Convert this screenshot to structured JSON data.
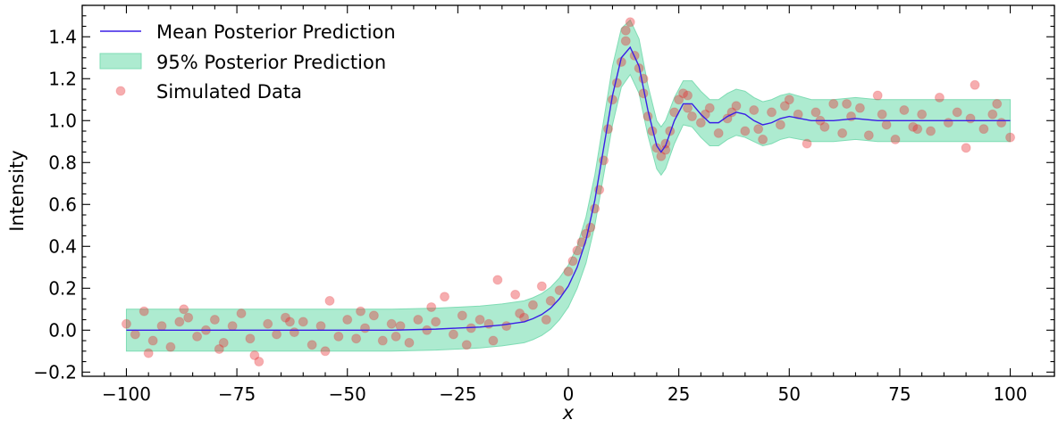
{
  "chart_data": {
    "type": "line",
    "xlabel": "x",
    "ylabel": "Intensity",
    "xlim": [
      -110,
      110
    ],
    "ylim": [
      -0.22,
      1.55
    ],
    "xticks": [
      -100,
      -75,
      -50,
      -25,
      0,
      25,
      50,
      75,
      100
    ],
    "xtick_labels": [
      "−100",
      "−75",
      "−50",
      "−25",
      "0",
      "25",
      "50",
      "75",
      "100"
    ],
    "yticks": [
      -0.2,
      0.0,
      0.2,
      0.4,
      0.6,
      0.8,
      1.0,
      1.2,
      1.4
    ],
    "ytick_labels": [
      "−0.2",
      "0.0",
      "0.2",
      "0.4",
      "0.6",
      "0.8",
      "1.0",
      "1.2",
      "1.4"
    ],
    "grid": false,
    "legend_position": "top-left",
    "colors": {
      "mean_line": "#3a1ee6",
      "band_fill": "#9fe8c8",
      "band_edge": "#7fdcb4",
      "scatter": "#e8282e"
    },
    "series": [
      {
        "name": "Mean Posterior Prediction",
        "kind": "line",
        "x": [
          -100,
          -90,
          -80,
          -70,
          -60,
          -50,
          -40,
          -30,
          -25,
          -20,
          -15,
          -10,
          -8,
          -6,
          -4,
          -2,
          0,
          2,
          4,
          6,
          8,
          10,
          12,
          14,
          16,
          18,
          20,
          21,
          22,
          24,
          26,
          28,
          30,
          32,
          34,
          36,
          38,
          40,
          42,
          44,
          46,
          48,
          50,
          55,
          60,
          65,
          70,
          75,
          80,
          85,
          90,
          95,
          100
        ],
        "y": [
          0.0,
          0.0,
          0.0,
          0.0,
          0.0,
          0.0,
          0.0,
          0.005,
          0.01,
          0.015,
          0.025,
          0.04,
          0.055,
          0.075,
          0.105,
          0.15,
          0.21,
          0.3,
          0.43,
          0.62,
          0.87,
          1.12,
          1.3,
          1.35,
          1.26,
          1.05,
          0.88,
          0.85,
          0.88,
          1.0,
          1.08,
          1.08,
          1.03,
          0.99,
          0.99,
          1.02,
          1.04,
          1.03,
          1.0,
          0.98,
          0.99,
          1.01,
          1.02,
          1.0,
          1.0,
          1.01,
          1.0,
          1.0,
          1.0,
          1.0,
          1.0,
          1.0,
          1.0
        ]
      },
      {
        "name": "95% Posterior Prediction",
        "kind": "band",
        "x": [
          -100,
          -90,
          -80,
          -70,
          -60,
          -50,
          -40,
          -30,
          -25,
          -20,
          -15,
          -10,
          -8,
          -6,
          -4,
          -2,
          0,
          2,
          4,
          6,
          8,
          10,
          12,
          14,
          16,
          18,
          20,
          21,
          22,
          24,
          26,
          28,
          30,
          32,
          34,
          36,
          38,
          40,
          42,
          44,
          46,
          48,
          50,
          55,
          60,
          65,
          70,
          75,
          80,
          85,
          90,
          95,
          100
        ],
        "lower": [
          -0.1,
          -0.1,
          -0.1,
          -0.1,
          -0.1,
          -0.1,
          -0.1,
          -0.095,
          -0.09,
          -0.085,
          -0.075,
          -0.06,
          -0.045,
          -0.025,
          0.005,
          0.05,
          0.11,
          0.2,
          0.32,
          0.5,
          0.74,
          0.98,
          1.16,
          1.22,
          1.13,
          0.93,
          0.77,
          0.74,
          0.77,
          0.89,
          0.98,
          0.97,
          0.92,
          0.88,
          0.88,
          0.91,
          0.93,
          0.92,
          0.9,
          0.88,
          0.89,
          0.91,
          0.92,
          0.9,
          0.9,
          0.91,
          0.9,
          0.9,
          0.9,
          0.9,
          0.9,
          0.9,
          0.9
        ],
        "upper": [
          0.1,
          0.1,
          0.1,
          0.1,
          0.1,
          0.1,
          0.1,
          0.105,
          0.11,
          0.115,
          0.125,
          0.14,
          0.155,
          0.175,
          0.205,
          0.25,
          0.31,
          0.4,
          0.54,
          0.74,
          1.0,
          1.26,
          1.44,
          1.48,
          1.39,
          1.17,
          1.0,
          0.97,
          1.0,
          1.11,
          1.19,
          1.19,
          1.14,
          1.1,
          1.1,
          1.13,
          1.15,
          1.14,
          1.11,
          1.09,
          1.1,
          1.12,
          1.13,
          1.1,
          1.1,
          1.11,
          1.1,
          1.1,
          1.1,
          1.1,
          1.1,
          1.1,
          1.1
        ]
      },
      {
        "name": "Simulated Data",
        "kind": "scatter",
        "x": [
          -100,
          -98,
          -96,
          -94,
          -92,
          -90,
          -88,
          -86,
          -84,
          -82,
          -80,
          -78,
          -76,
          -74,
          -72,
          -70,
          -68,
          -66,
          -64,
          -62,
          -60,
          -58,
          -56,
          -54,
          -52,
          -50,
          -48,
          -46,
          -44,
          -42,
          -40,
          -38,
          -36,
          -34,
          -32,
          -30,
          -28,
          -26,
          -24,
          -22,
          -20,
          -18,
          -16,
          -14,
          -12,
          -10,
          -8,
          -6,
          -4,
          -2,
          0,
          1,
          2,
          3,
          4,
          5,
          6,
          7,
          8,
          9,
          10,
          11,
          12,
          13,
          14,
          15,
          16,
          17,
          18,
          19,
          20,
          21,
          22,
          23,
          24,
          25,
          26,
          27,
          28,
          30,
          32,
          34,
          36,
          38,
          40,
          42,
          44,
          46,
          48,
          50,
          52,
          54,
          56,
          58,
          60,
          62,
          64,
          66,
          68,
          70,
          72,
          74,
          76,
          78,
          80,
          82,
          84,
          86,
          88,
          90,
          92,
          94,
          96,
          98,
          100,
          -95,
          -87,
          -79,
          -71,
          -63,
          -55,
          -47,
          -39,
          -31,
          -23,
          -17,
          -11,
          -5,
          13,
          17,
          22,
          27,
          31,
          37,
          43,
          49,
          57,
          63,
          71,
          79,
          91,
          97
        ],
        "y": [
          0.03,
          -0.02,
          0.09,
          -0.05,
          0.02,
          -0.08,
          0.04,
          0.06,
          -0.03,
          0.0,
          0.05,
          -0.06,
          0.02,
          0.08,
          -0.04,
          -0.15,
          0.03,
          -0.02,
          0.06,
          -0.01,
          0.04,
          -0.07,
          0.02,
          0.14,
          -0.03,
          0.05,
          -0.04,
          0.01,
          0.07,
          -0.05,
          0.03,
          0.02,
          -0.06,
          0.05,
          0.0,
          0.04,
          0.16,
          -0.02,
          0.07,
          0.01,
          0.05,
          0.03,
          0.24,
          0.02,
          0.17,
          0.06,
          0.12,
          0.21,
          0.14,
          0.19,
          0.28,
          0.33,
          0.38,
          0.42,
          0.46,
          0.49,
          0.58,
          0.67,
          0.81,
          0.96,
          1.1,
          1.18,
          1.28,
          1.38,
          1.47,
          1.31,
          1.25,
          1.13,
          1.02,
          0.95,
          0.87,
          0.83,
          0.86,
          0.95,
          1.04,
          1.1,
          1.13,
          1.06,
          1.02,
          0.99,
          1.06,
          0.94,
          1.01,
          1.07,
          0.95,
          1.05,
          0.91,
          1.04,
          0.98,
          1.1,
          1.03,
          0.89,
          1.04,
          0.97,
          1.08,
          0.94,
          1.02,
          1.06,
          0.93,
          1.12,
          0.98,
          0.91,
          1.05,
          0.97,
          1.03,
          0.95,
          1.11,
          0.99,
          1.04,
          0.87,
          1.17,
          0.96,
          1.03,
          0.99,
          0.92,
          -0.11,
          0.1,
          -0.09,
          -0.12,
          0.04,
          -0.1,
          0.09,
          -0.03,
          0.11,
          -0.07,
          -0.05,
          0.08,
          0.05,
          1.43,
          1.2,
          0.89,
          1.12,
          1.03,
          1.04,
          0.96,
          1.07,
          1.0,
          1.08,
          1.03,
          0.96,
          1.01,
          1.08
        ]
      }
    ]
  }
}
